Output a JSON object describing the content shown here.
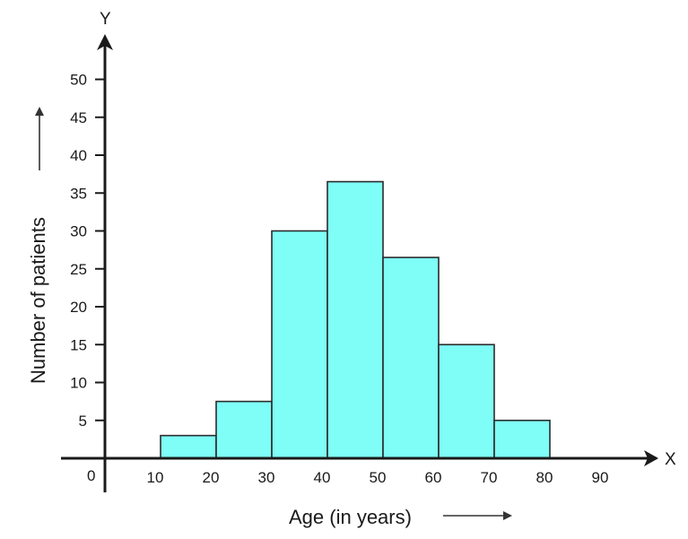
{
  "chart_data": {
    "type": "bar",
    "subtype": "histogram",
    "bins": [
      [
        10,
        20
      ],
      [
        20,
        30
      ],
      [
        30,
        40
      ],
      [
        40,
        50
      ],
      [
        50,
        60
      ],
      [
        60,
        70
      ],
      [
        70,
        80
      ]
    ],
    "values": [
      3,
      7.5,
      30,
      36.5,
      26.5,
      15,
      5
    ],
    "xlabel": "Age (in years)",
    "ylabel": "Number of patients",
    "x_axis_letter": "X",
    "y_axis_letter": "Y",
    "origin_label": "0",
    "x_ticks": [
      "10",
      "20",
      "30",
      "40",
      "50",
      "60",
      "70",
      "80",
      "90"
    ],
    "y_ticks": [
      "5",
      "10",
      "15",
      "20",
      "25",
      "30",
      "35",
      "40",
      "45",
      "50"
    ],
    "xlim": [
      0,
      100
    ],
    "ylim": [
      0,
      55
    ],
    "bar_color": "#7ffdf7",
    "grid": false
  }
}
